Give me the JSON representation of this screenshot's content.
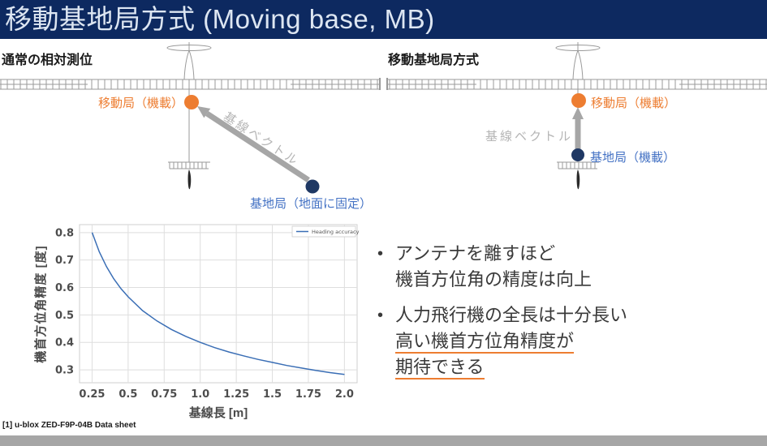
{
  "slide": {
    "title": "移動基地局方式 (Moving base, MB)",
    "footnote": "[1] u-blox ZED-F9P-04B Data sheet"
  },
  "colors": {
    "title_bar_bg": "#0d2960",
    "title_text": "#dde6f2",
    "rover_orange": "#ED7D31",
    "base_navy": "#1F3864",
    "base_label_blue": "#4472C4",
    "arrow_gray": "#a6a6a6",
    "vector_label_gray": "#b5b5b5",
    "aircraft_line": "#9a9a9a",
    "bottom_bar": "#a6a6a6",
    "curve_blue": "#3a6eb5"
  },
  "diagram_left": {
    "heading": "通常の相対測位",
    "rover_label": "移動局（機載）",
    "base_label": "基地局（地面に固定）",
    "vector_label": "基線ベクトル"
  },
  "diagram_right": {
    "heading": "移動基地局方式",
    "rover_label": "移動局（機載）",
    "base_label": "基地局（機載）",
    "vector_label": "基線ベクトル"
  },
  "bullets": [
    {
      "lines": [
        "アンテナを離すほど",
        "機首方位角の精度は向上"
      ],
      "underline": []
    },
    {
      "lines": [
        "人力飛行機の全長は十分長い",
        "高い機首方位角精度が",
        "期待できる"
      ],
      "underline": [
        1,
        2
      ]
    }
  ],
  "chart_data": {
    "type": "line",
    "title": "",
    "xlabel": "基線長 [m]",
    "ylabel": "機首方位角精度 [度]",
    "legend": [
      "Heading accuracy"
    ],
    "legend_position": "upper right",
    "grid": true,
    "xlim": [
      0.163,
      2.088
    ],
    "ylim": [
      0.253,
      0.829
    ],
    "xticks": [
      0.25,
      0.5,
      0.75,
      1.0,
      1.25,
      1.5,
      1.75,
      2.0
    ],
    "xtick_labels": [
      "0.25",
      "0.5",
      "0.75",
      "1.0",
      "1.25",
      "1.5",
      "1.75",
      "2.0"
    ],
    "yticks": [
      0.3,
      0.4,
      0.5,
      0.6,
      0.7,
      0.8
    ],
    "ytick_labels": [
      "0.3",
      "0.4",
      "0.5",
      "0.6",
      "0.7",
      "0.8"
    ],
    "series": [
      {
        "name": "Heading accuracy",
        "color": "#3a6eb5",
        "x": [
          0.25,
          0.3,
          0.35,
          0.4,
          0.45,
          0.5,
          0.6,
          0.7,
          0.8,
          0.9,
          1.0,
          1.1,
          1.2,
          1.3,
          1.4,
          1.5,
          1.6,
          1.7,
          1.8,
          1.9,
          2.0
        ],
        "y": [
          0.8,
          0.73,
          0.676,
          0.632,
          0.596,
          0.566,
          0.516,
          0.478,
          0.447,
          0.422,
          0.4,
          0.381,
          0.365,
          0.351,
          0.338,
          0.327,
          0.316,
          0.307,
          0.298,
          0.29,
          0.283
        ]
      }
    ]
  }
}
